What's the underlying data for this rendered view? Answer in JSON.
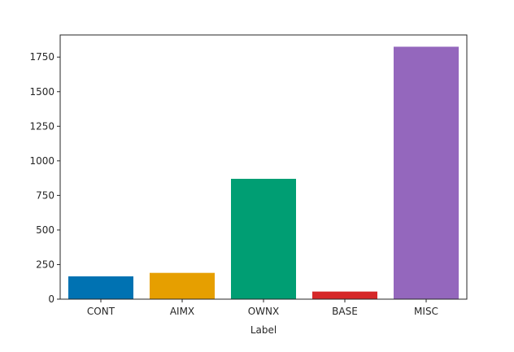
{
  "chart_data": {
    "type": "bar",
    "title": "",
    "xlabel": "Label",
    "ylabel": "",
    "categories": [
      "CONT",
      "AIMX",
      "OWNX",
      "BASE",
      "MISC"
    ],
    "values": [
      165,
      190,
      870,
      55,
      1825
    ],
    "colors": [
      "#0072b2",
      "#e69f00",
      "#009e73",
      "#d62728",
      "#9467bd"
    ],
    "ylim": [
      0,
      1910
    ],
    "yticks": [
      0,
      250,
      500,
      750,
      1000,
      1250,
      1500,
      1750
    ],
    "grid": false,
    "legend": "none"
  }
}
